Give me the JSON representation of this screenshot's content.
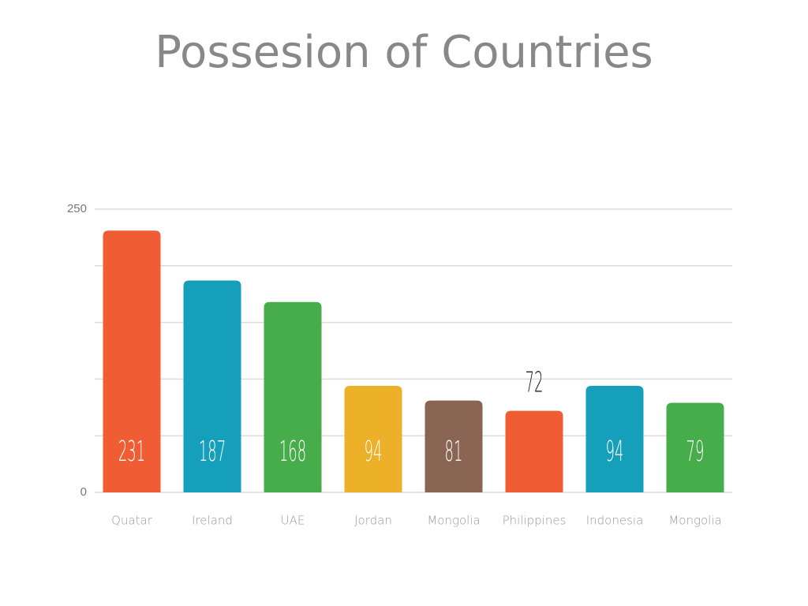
{
  "chart_data": {
    "type": "bar",
    "title": "Possesion of Countries",
    "categories": [
      "Quatar",
      "Ireland",
      "UAE",
      "Jordan",
      "Mongolia",
      "Philippines",
      "Indonesia",
      "Mongolia"
    ],
    "values": [
      231,
      187,
      168,
      94,
      81,
      72,
      94,
      79
    ],
    "colors": [
      "#f05d35",
      "#159fbb",
      "#47ad4b",
      "#ecb128",
      "#8a6553",
      "#f05d35",
      "#159fbb",
      "#47ad4b"
    ],
    "label_positions": [
      "inside",
      "inside",
      "inside",
      "inside",
      "inside",
      "above",
      "inside",
      "inside"
    ],
    "ylim": [
      0,
      250
    ],
    "yticks": [
      0,
      250
    ],
    "grid_lines": [
      50,
      100,
      150,
      200
    ],
    "grid": true
  }
}
